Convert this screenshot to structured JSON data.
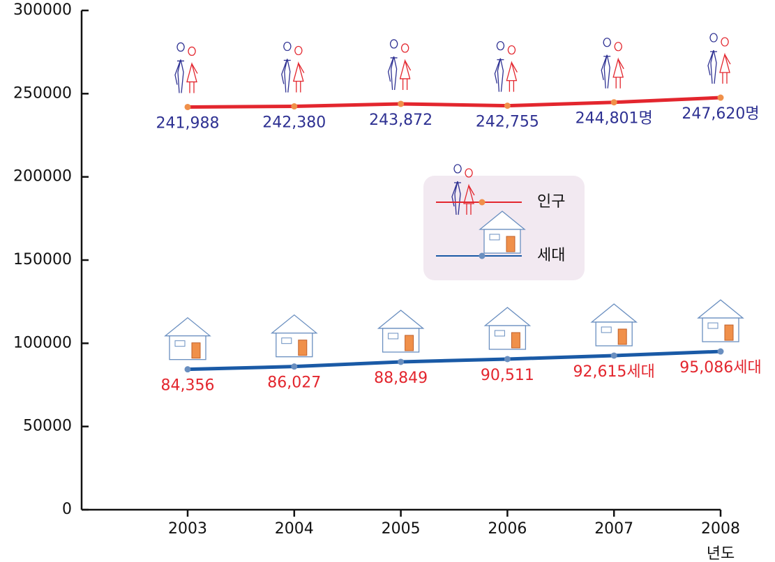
{
  "chart_data": {
    "type": "line",
    "x_label": "년도",
    "categories": [
      "2003",
      "2004",
      "2005",
      "2006",
      "2007",
      "2008"
    ],
    "series": [
      {
        "name": "인구",
        "color": "#e3262e",
        "marker_color": "#f0904a",
        "label_color": "#2e3192",
        "values": [
          241988,
          242380,
          243872,
          242755,
          244801,
          247620
        ],
        "value_labels": [
          "241,988",
          "242,380",
          "243,872",
          "242,755",
          "244,801명",
          "247,620명"
        ]
      },
      {
        "name": "세대",
        "color": "#1a5aa6",
        "marker_color": "#6a8fc0",
        "label_color": "#e3262e",
        "values": [
          84356,
          86027,
          88849,
          90511,
          92615,
          95086
        ],
        "value_labels": [
          "84,356",
          "86,027",
          "88,849",
          "90,511",
          "92,615세대",
          "95,086세대"
        ]
      }
    ],
    "ylim": [
      0,
      300000
    ],
    "yticks": [
      0,
      50000,
      100000,
      150000,
      200000,
      250000,
      300000
    ]
  }
}
